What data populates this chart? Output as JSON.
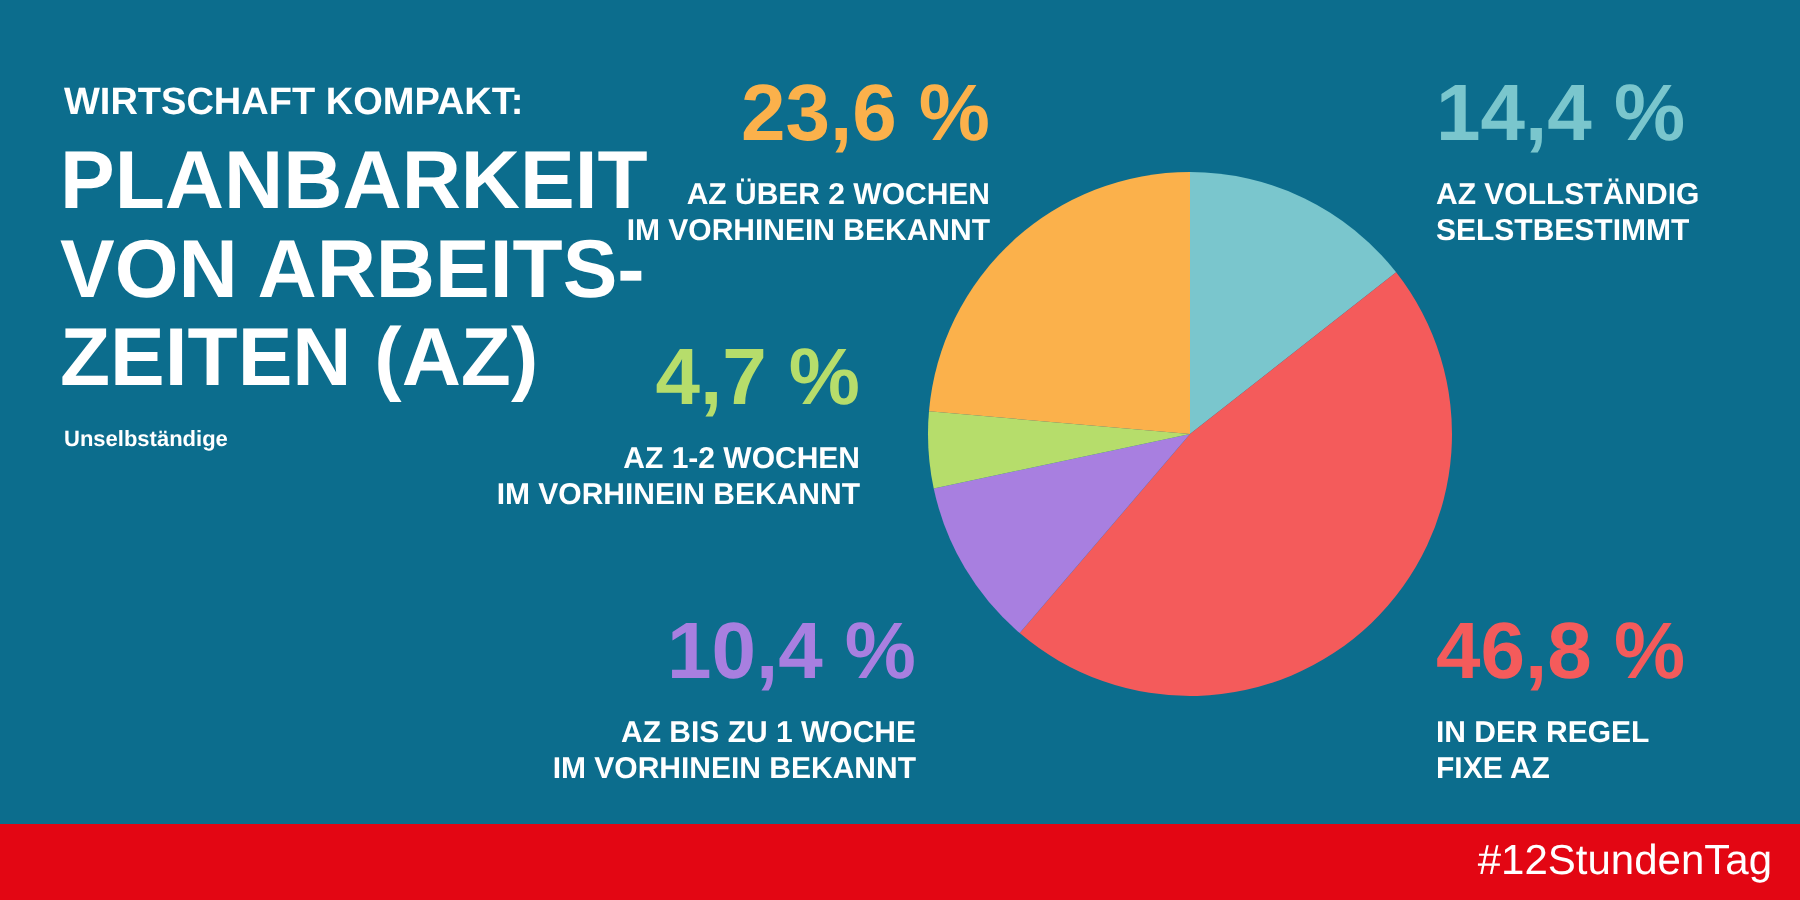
{
  "chart_data": {
    "type": "pie",
    "title": "PLANBARKEIT\nVON ARBEITS-\nZEITEN (AZ)",
    "subtitle": "Unselbständige",
    "categories": [
      "AZ VOLLSTÄNDIG\nSELSTBESTIMMT",
      "IN DER REGEL\nFIXE AZ",
      "AZ BIS ZU 1 WOCHE\nIM VORHINEIN BEKANNT",
      "AZ 1-2 WOCHEN\nIM VORHINEIN BEKANNT",
      "AZ ÜBER 2 WOCHEN\nIM VORHINEIN BEKANNT"
    ],
    "values": [
      14.4,
      46.8,
      10.4,
      4.7,
      23.6
    ],
    "value_labels": [
      "14,4 %",
      "46,8 %",
      "10,4 %",
      "4,7 %",
      "23,6 %"
    ],
    "colors": [
      "#7ac6cd",
      "#f45b5b",
      "#a87fe0",
      "#b6dd6b",
      "#fbb14b"
    ],
    "annotations": [
      "WIRTSCHAFT KOMPAKT:",
      "#12StundenTag"
    ]
  }
}
